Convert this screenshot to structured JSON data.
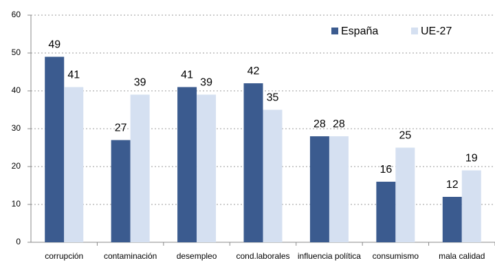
{
  "chart_data": {
    "type": "bar",
    "categories": [
      "corrupción",
      "contaminación",
      "desempleo",
      "cond.laborales",
      "influencia política",
      "consumismo",
      "mala calidad"
    ],
    "series": [
      {
        "name": "España",
        "color": "#3b5b8f",
        "values": [
          49,
          27,
          41,
          42,
          28,
          16,
          12
        ]
      },
      {
        "name": "UE-27",
        "color": "#d5e0f1",
        "values": [
          41,
          39,
          39,
          35,
          28,
          25,
          19
        ]
      }
    ],
    "ylim": [
      0,
      60
    ],
    "yticks": [
      0,
      10,
      20,
      30,
      40,
      50,
      60
    ],
    "grid": true,
    "legend": "top-right"
  }
}
